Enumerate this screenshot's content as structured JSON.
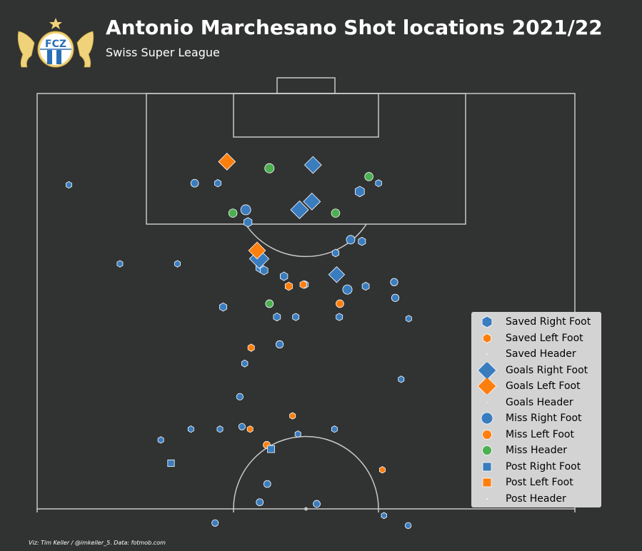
{
  "header": {
    "title": "Antonio Marchesano Shot locations 2021/22",
    "subtitle": "Swiss Super League",
    "credit": "Viz: Tim Keller / @imkeller_5. Data: fotmob.com",
    "crest_text": "FCZ"
  },
  "colors": {
    "background": "#313232",
    "lines": "#c8c8c8",
    "right_foot": "#3a7dbf",
    "left_foot": "#ff7f0e",
    "header": "#4caf50",
    "legend_bg": "#d3d3d3",
    "crest_gold": "#f0d27a",
    "crest_blue": "#2a6fb5"
  },
  "chart_data": {
    "type": "scatter",
    "pitch": "half-pitch, attacking upward",
    "legend_position": "bottom-right",
    "legend": [
      {
        "label": "Saved Right Foot",
        "outcome": "Saved",
        "body": "Right Foot",
        "marker": "hexagon"
      },
      {
        "label": "Saved Left Foot",
        "outcome": "Saved",
        "body": "Left Foot",
        "marker": "hexagon"
      },
      {
        "label": "Saved Header",
        "outcome": "Saved",
        "body": "Header",
        "marker": "hexagon"
      },
      {
        "label": "Goals Right Foot",
        "outcome": "Goals",
        "body": "Right Foot",
        "marker": "diamond"
      },
      {
        "label": "Goals Left Foot",
        "outcome": "Goals",
        "body": "Left Foot",
        "marker": "diamond"
      },
      {
        "label": "Goals Header",
        "outcome": "Goals",
        "body": "Header",
        "marker": "diamond"
      },
      {
        "label": "Miss Right Foot",
        "outcome": "Miss",
        "body": "Right Foot",
        "marker": "circle"
      },
      {
        "label": "Miss Left Foot",
        "outcome": "Miss",
        "body": "Left Foot",
        "marker": "circle"
      },
      {
        "label": "Miss Header",
        "outcome": "Miss",
        "body": "Header",
        "marker": "circle"
      },
      {
        "label": "Post Right Foot",
        "outcome": "Post",
        "body": "Right Foot",
        "marker": "square"
      },
      {
        "label": "Post Left Foot",
        "outcome": "Post",
        "body": "Left Foot",
        "marker": "square"
      },
      {
        "label": "Post Header",
        "outcome": "Post",
        "body": "Header",
        "marker": "square"
      }
    ],
    "shots": [
      {
        "x": 5.9,
        "y": 89.0,
        "outcome": "Saved",
        "body": "Right Foot",
        "xg": 0.03
      },
      {
        "x": 15.4,
        "y": 79.5,
        "outcome": "Saved",
        "body": "Right Foot",
        "xg": 0.03
      },
      {
        "x": 26.1,
        "y": 79.5,
        "outcome": "Saved",
        "body": "Right Foot",
        "xg": 0.03
      },
      {
        "x": 33.6,
        "y": 89.2,
        "outcome": "Saved",
        "body": "Right Foot",
        "xg": 0.05
      },
      {
        "x": 34.6,
        "y": 74.3,
        "outcome": "Saved",
        "body": "Right Foot",
        "xg": 0.08
      },
      {
        "x": 39.2,
        "y": 84.5,
        "outcome": "Saved",
        "body": "Right Foot",
        "xg": 0.12
      },
      {
        "x": 41.4,
        "y": 79.0,
        "outcome": "Saved",
        "body": "Right Foot",
        "xg": 0.1
      },
      {
        "x": 42.2,
        "y": 78.7,
        "outcome": "Saved",
        "body": "Right Foot",
        "xg": 0.1
      },
      {
        "x": 44.6,
        "y": 73.1,
        "outcome": "Saved",
        "body": "Right Foot",
        "xg": 0.07
      },
      {
        "x": 45.9,
        "y": 78.0,
        "outcome": "Saved",
        "body": "Right Foot",
        "xg": 0.09
      },
      {
        "x": 49.8,
        "y": 77.0,
        "outcome": "Saved",
        "body": "Right Foot",
        "xg": 0.06
      },
      {
        "x": 60.0,
        "y": 88.2,
        "outcome": "Saved",
        "body": "Right Foot",
        "xg": 0.18
      },
      {
        "x": 55.5,
        "y": 80.8,
        "outcome": "Saved",
        "body": "Right Foot",
        "xg": 0.06
      },
      {
        "x": 60.4,
        "y": 82.2,
        "outcome": "Saved",
        "body": "Right Foot",
        "xg": 0.08
      },
      {
        "x": 63.5,
        "y": 89.2,
        "outcome": "Saved",
        "body": "Right Foot",
        "xg": 0.04
      },
      {
        "x": 61.1,
        "y": 76.8,
        "outcome": "Saved",
        "body": "Right Foot",
        "xg": 0.07
      },
      {
        "x": 56.2,
        "y": 73.1,
        "outcome": "Saved",
        "body": "Right Foot",
        "xg": 0.05
      },
      {
        "x": 48.1,
        "y": 73.1,
        "outcome": "Saved",
        "body": "Right Foot",
        "xg": 0.05
      },
      {
        "x": 69.1,
        "y": 72.9,
        "outcome": "Saved",
        "body": "Right Foot",
        "xg": 0.03
      },
      {
        "x": 38.6,
        "y": 67.5,
        "outcome": "Saved",
        "body": "Right Foot",
        "xg": 0.04
      },
      {
        "x": 67.7,
        "y": 65.6,
        "outcome": "Saved",
        "body": "Right Foot",
        "xg": 0.03
      },
      {
        "x": 34.0,
        "y": 59.6,
        "outcome": "Saved",
        "body": "Right Foot",
        "xg": 0.03
      },
      {
        "x": 28.6,
        "y": 59.6,
        "outcome": "Saved",
        "body": "Right Foot",
        "xg": 0.03
      },
      {
        "x": 48.5,
        "y": 59.0,
        "outcome": "Saved",
        "body": "Right Foot",
        "xg": 0.03
      },
      {
        "x": 55.3,
        "y": 59.6,
        "outcome": "Saved",
        "body": "Right Foot",
        "xg": 0.03
      },
      {
        "x": 64.5,
        "y": 49.2,
        "outcome": "Saved",
        "body": "Right Foot",
        "xg": 0.02
      },
      {
        "x": 23.0,
        "y": 58.3,
        "outcome": "Saved",
        "body": "Right Foot",
        "xg": 0.03
      },
      {
        "x": 39.8,
        "y": 69.4,
        "outcome": "Saved",
        "body": "Left Foot",
        "xg": 0.05
      },
      {
        "x": 46.8,
        "y": 76.8,
        "outcome": "Saved",
        "body": "Left Foot",
        "xg": 0.08
      },
      {
        "x": 49.5,
        "y": 77.0,
        "outcome": "Saved",
        "body": "Left Foot",
        "xg": 0.06
      },
      {
        "x": 39.6,
        "y": 59.6,
        "outcome": "Saved",
        "body": "Left Foot",
        "xg": 0.03
      },
      {
        "x": 47.5,
        "y": 61.2,
        "outcome": "Saved",
        "body": "Left Foot",
        "xg": 0.03
      },
      {
        "x": 64.2,
        "y": 54.7,
        "outcome": "Saved",
        "body": "Left Foot",
        "xg": 0.03
      },
      {
        "x": 51.3,
        "y": 91.4,
        "outcome": "Goals",
        "body": "Right Foot",
        "xg": 0.3
      },
      {
        "x": 51.1,
        "y": 87.0,
        "outcome": "Goals",
        "body": "Right Foot",
        "xg": 0.3
      },
      {
        "x": 48.8,
        "y": 86.0,
        "outcome": "Goals",
        "body": "Right Foot",
        "xg": 0.35
      },
      {
        "x": 41.3,
        "y": 80.1,
        "outcome": "Goals",
        "body": "Right Foot",
        "xg": 0.45
      },
      {
        "x": 55.7,
        "y": 78.2,
        "outcome": "Goals",
        "body": "Right Foot",
        "xg": 0.25
      },
      {
        "x": 35.3,
        "y": 91.8,
        "outcome": "Goals",
        "body": "Left Foot",
        "xg": 0.3
      },
      {
        "x": 40.9,
        "y": 81.1,
        "outcome": "Goals",
        "body": "Left Foot",
        "xg": 0.3
      },
      {
        "x": 29.3,
        "y": 89.2,
        "outcome": "Miss",
        "body": "Right Foot",
        "xg": 0.06
      },
      {
        "x": 38.8,
        "y": 86.0,
        "outcome": "Miss",
        "body": "Right Foot",
        "xg": 0.15
      },
      {
        "x": 57.7,
        "y": 76.4,
        "outcome": "Miss",
        "body": "Right Foot",
        "xg": 0.12
      },
      {
        "x": 58.3,
        "y": 82.4,
        "outcome": "Miss",
        "body": "Right Foot",
        "xg": 0.09
      },
      {
        "x": 66.4,
        "y": 77.3,
        "outcome": "Miss",
        "body": "Right Foot",
        "xg": 0.05
      },
      {
        "x": 66.6,
        "y": 75.4,
        "outcome": "Miss",
        "body": "Right Foot",
        "xg": 0.05
      },
      {
        "x": 45.1,
        "y": 69.8,
        "outcome": "Miss",
        "body": "Right Foot",
        "xg": 0.05
      },
      {
        "x": 38.1,
        "y": 59.9,
        "outcome": "Miss",
        "body": "Right Foot",
        "xg": 0.03
      },
      {
        "x": 42.8,
        "y": 53.0,
        "outcome": "Miss",
        "body": "Right Foot",
        "xg": 0.04
      },
      {
        "x": 41.4,
        "y": 50.8,
        "outcome": "Miss",
        "body": "Right Foot",
        "xg": 0.04
      },
      {
        "x": 52.0,
        "y": 50.6,
        "outcome": "Miss",
        "body": "Right Foot",
        "xg": 0.04
      },
      {
        "x": 33.1,
        "y": 48.3,
        "outcome": "Miss",
        "body": "Right Foot",
        "xg": 0.03
      },
      {
        "x": 69.0,
        "y": 48.0,
        "outcome": "Miss",
        "body": "Right Foot",
        "xg": 0.02
      },
      {
        "x": 55.0,
        "y": 44.2,
        "outcome": "Miss",
        "body": "Right Foot",
        "xg": 0.02
      },
      {
        "x": 37.7,
        "y": 63.5,
        "outcome": "Miss",
        "body": "Right Foot",
        "xg": 0.03
      },
      {
        "x": 42.7,
        "y": 57.7,
        "outcome": "Miss",
        "body": "Left Foot",
        "xg": 0.04
      },
      {
        "x": 56.3,
        "y": 74.7,
        "outcome": "Miss",
        "body": "Left Foot",
        "xg": 0.06
      },
      {
        "x": 43.2,
        "y": 91.0,
        "outcome": "Miss",
        "body": "Header",
        "xg": 0.12
      },
      {
        "x": 36.4,
        "y": 85.6,
        "outcome": "Miss",
        "body": "Header",
        "xg": 0.08
      },
      {
        "x": 55.5,
        "y": 85.6,
        "outcome": "Miss",
        "body": "Header",
        "xg": 0.08
      },
      {
        "x": 61.7,
        "y": 90.0,
        "outcome": "Miss",
        "body": "Header",
        "xg": 0.08
      },
      {
        "x": 43.2,
        "y": 74.7,
        "outcome": "Miss",
        "body": "Header",
        "xg": 0.06
      },
      {
        "x": 43.5,
        "y": 57.2,
        "outcome": "Post",
        "body": "Right Foot",
        "xg": 0.04
      },
      {
        "x": 24.9,
        "y": 55.5,
        "outcome": "Post",
        "body": "Right Foot",
        "xg": 0.03
      }
    ]
  }
}
